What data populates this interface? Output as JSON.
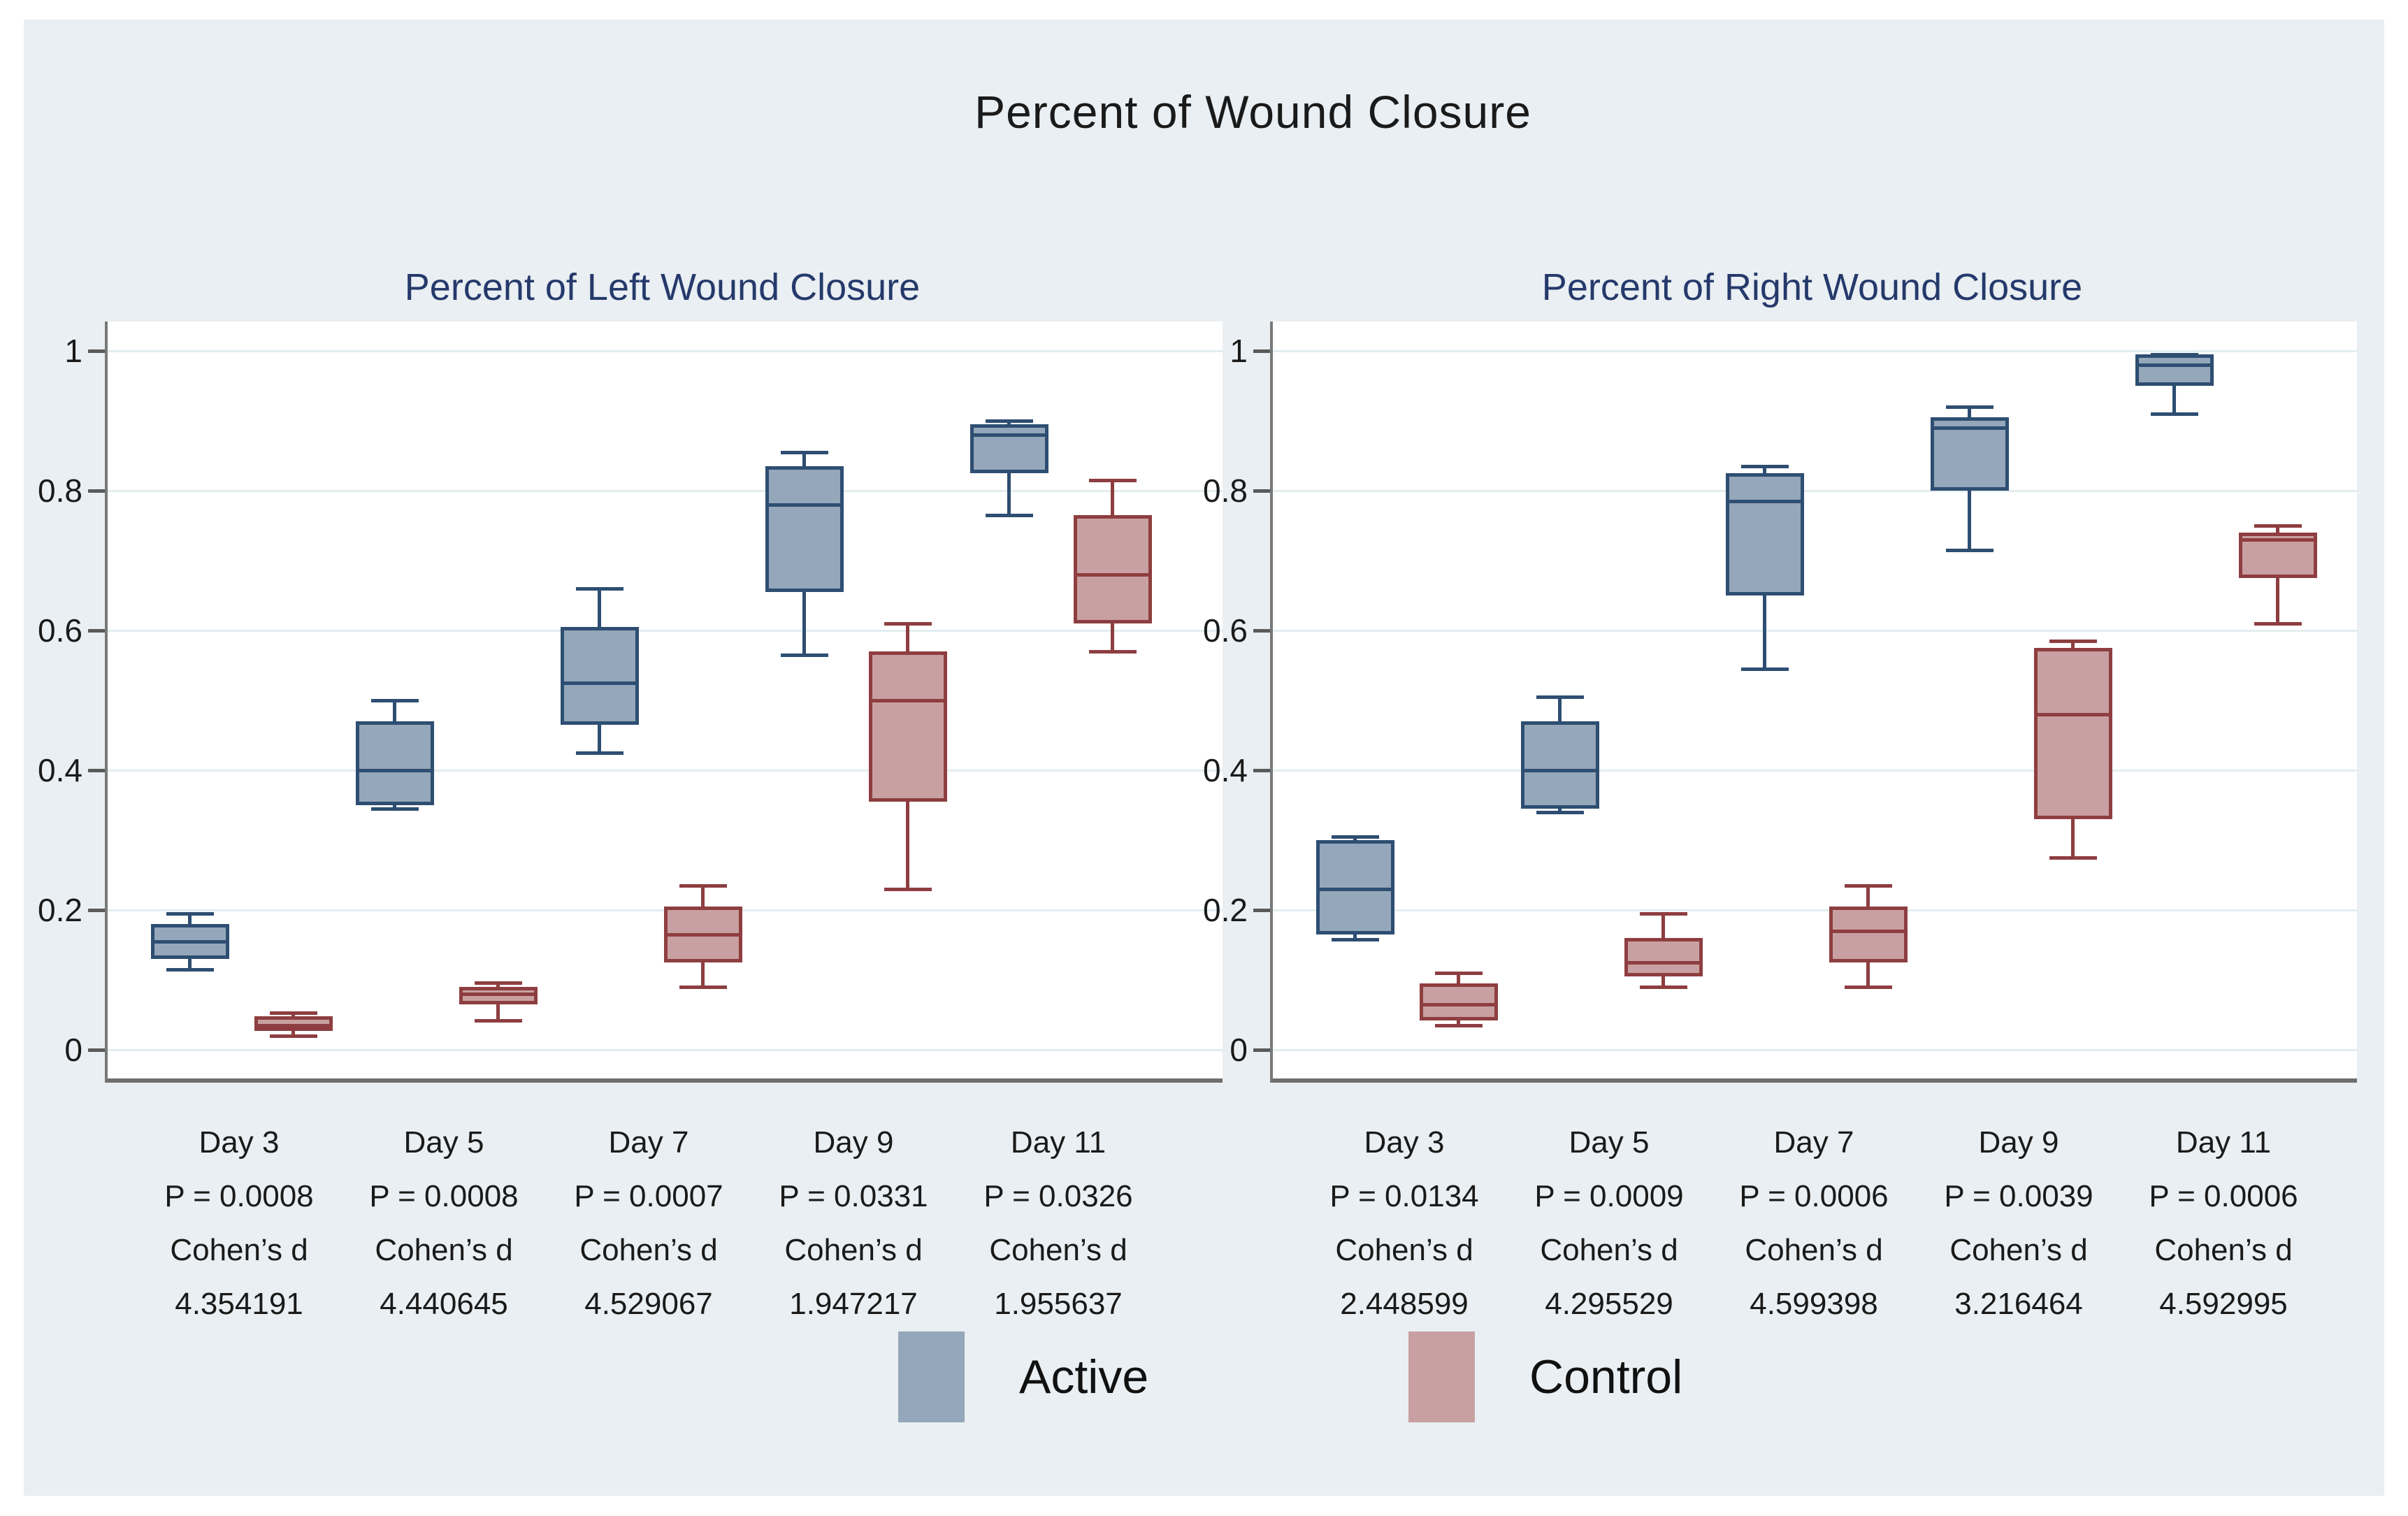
{
  "title": "Percent of Wound Closure",
  "colors": {
    "background": "#e9eff2",
    "plot_background": "#ffffff",
    "gridline": "#e3edf0",
    "axis": "#6e6e6e",
    "panel_title": "#25396b",
    "active_fill": "#95a7ba",
    "active_border": "#2e4e72",
    "control_fill": "#c9a0a1",
    "control_border": "#8e3e40"
  },
  "legend": {
    "items": [
      {
        "label": "Active",
        "color": "#95a7ba"
      },
      {
        "label": "Control",
        "color": "#c9a0a1"
      }
    ]
  },
  "chart_data": [
    {
      "type": "box",
      "title": "Percent of Left Wound Closure",
      "categories": [
        "Day 3",
        "Day 5",
        "Day 7",
        "Day 9",
        "Day 11"
      ],
      "ylim": [
        0,
        1
      ],
      "yticks": [
        0,
        0.2,
        0.4,
        0.6,
        0.8,
        1
      ],
      "yticklabels": [
        "0",
        "0.2",
        "0.4",
        "0.6",
        "0.8",
        "1"
      ],
      "grid": true,
      "annotations": [
        {
          "day": "Day 3",
          "p": "P = 0.0008",
          "cohen": "Cohen’s d",
          "value": "4.354191"
        },
        {
          "day": "Day 5",
          "p": "P = 0.0008",
          "cohen": "Cohen’s d",
          "value": "4.440645"
        },
        {
          "day": "Day 7",
          "p": "P = 0.0007",
          "cohen": "Cohen’s d",
          "value": "4.529067"
        },
        {
          "day": "Day 9",
          "p": "P = 0.0331",
          "cohen": "Cohen’s d",
          "value": "1.947217"
        },
        {
          "day": "Day 11",
          "p": "P = 0.0326",
          "cohen": "Cohen’s d",
          "value": "1.955637"
        }
      ],
      "series": [
        {
          "name": "Active",
          "boxes": [
            {
              "min": 0.115,
              "q1": 0.13,
              "median": 0.155,
              "q3": 0.18,
              "max": 0.195
            },
            {
              "min": 0.345,
              "q1": 0.35,
              "median": 0.4,
              "q3": 0.47,
              "max": 0.5
            },
            {
              "min": 0.425,
              "q1": 0.465,
              "median": 0.525,
              "q3": 0.605,
              "max": 0.66
            },
            {
              "min": 0.565,
              "q1": 0.655,
              "median": 0.78,
              "q3": 0.835,
              "max": 0.855
            },
            {
              "min": 0.765,
              "q1": 0.825,
              "median": 0.88,
              "q3": 0.895,
              "max": 0.9
            }
          ]
        },
        {
          "name": "Control",
          "boxes": [
            {
              "min": 0.02,
              "q1": 0.027,
              "median": 0.035,
              "q3": 0.048,
              "max": 0.053
            },
            {
              "min": 0.042,
              "q1": 0.065,
              "median": 0.08,
              "q3": 0.09,
              "max": 0.096
            },
            {
              "min": 0.09,
              "q1": 0.125,
              "median": 0.165,
              "q3": 0.205,
              "max": 0.235
            },
            {
              "min": 0.23,
              "q1": 0.355,
              "median": 0.5,
              "q3": 0.57,
              "max": 0.61
            },
            {
              "min": 0.57,
              "q1": 0.61,
              "median": 0.68,
              "q3": 0.765,
              "max": 0.815
            }
          ]
        }
      ]
    },
    {
      "type": "box",
      "title": "Percent of Right Wound Closure",
      "categories": [
        "Day 3",
        "Day 5",
        "Day 7",
        "Day 9",
        "Day 11"
      ],
      "ylim": [
        0,
        1
      ],
      "yticks": [
        0,
        0.2,
        0.4,
        0.6,
        0.8,
        1
      ],
      "yticklabels": [
        "0",
        "0.2",
        "0.4",
        "0.6",
        "0.8",
        "1"
      ],
      "grid": true,
      "annotations": [
        {
          "day": "Day 3",
          "p": "P = 0.0134",
          "cohen": "Cohen’s d",
          "value": "2.448599"
        },
        {
          "day": "Day 5",
          "p": "P = 0.0009",
          "cohen": "Cohen’s d",
          "value": "4.295529"
        },
        {
          "day": "Day 7",
          "p": "P = 0.0006",
          "cohen": "Cohen’s d",
          "value": "4.599398"
        },
        {
          "day": "Day 9",
          "p": "P = 0.0039",
          "cohen": "Cohen’s d",
          "value": "3.216464"
        },
        {
          "day": "Day 11",
          "p": "P = 0.0006",
          "cohen": "Cohen’s d",
          "value": "4.592995"
        }
      ],
      "series": [
        {
          "name": "Active",
          "boxes": [
            {
              "min": 0.158,
              "q1": 0.165,
              "median": 0.23,
              "q3": 0.3,
              "max": 0.305
            },
            {
              "min": 0.34,
              "q1": 0.345,
              "median": 0.4,
              "q3": 0.47,
              "max": 0.505
            },
            {
              "min": 0.545,
              "q1": 0.65,
              "median": 0.785,
              "q3": 0.825,
              "max": 0.835
            },
            {
              "min": 0.715,
              "q1": 0.8,
              "median": 0.89,
              "q3": 0.905,
              "max": 0.92
            },
            {
              "min": 0.91,
              "q1": 0.95,
              "median": 0.98,
              "q3": 0.995,
              "max": 0.995
            }
          ]
        },
        {
          "name": "Control",
          "boxes": [
            {
              "min": 0.035,
              "q1": 0.042,
              "median": 0.065,
              "q3": 0.095,
              "max": 0.11
            },
            {
              "min": 0.09,
              "q1": 0.105,
              "median": 0.125,
              "q3": 0.16,
              "max": 0.195
            },
            {
              "min": 0.09,
              "q1": 0.125,
              "median": 0.17,
              "q3": 0.205,
              "max": 0.235
            },
            {
              "min": 0.275,
              "q1": 0.33,
              "median": 0.48,
              "q3": 0.575,
              "max": 0.585
            },
            {
              "min": 0.61,
              "q1": 0.675,
              "median": 0.73,
              "q3": 0.74,
              "max": 0.75
            }
          ]
        }
      ]
    }
  ]
}
